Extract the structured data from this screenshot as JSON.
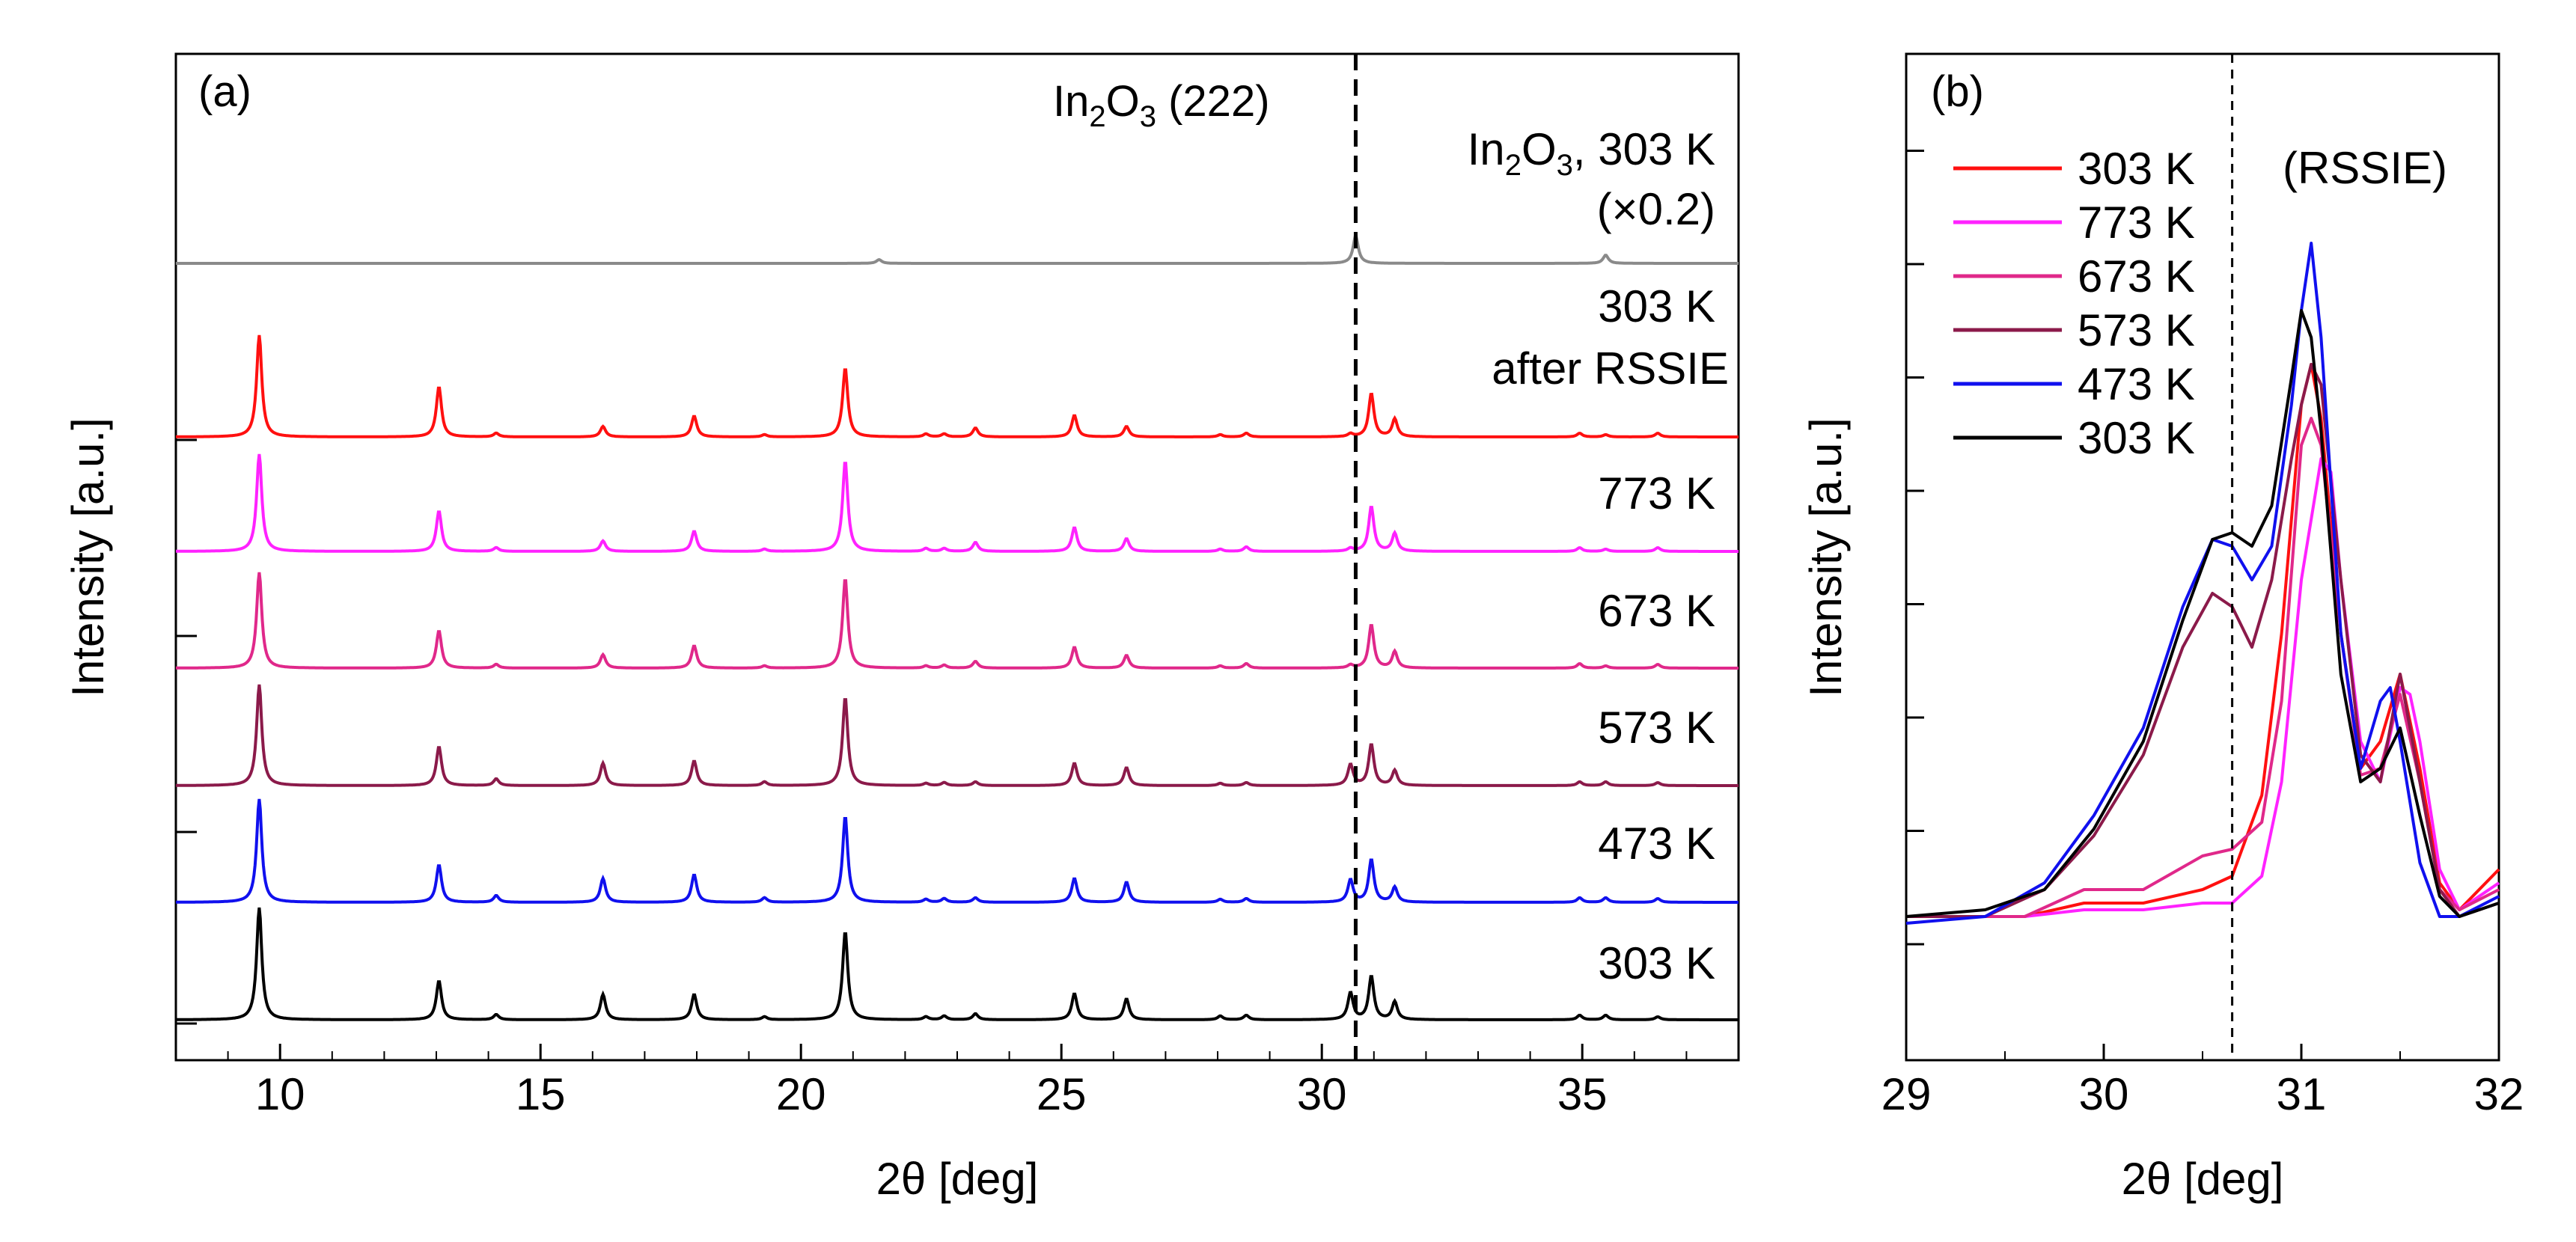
{
  "chart_data": [
    {
      "panel": "(a)",
      "type": "line",
      "panel_label": "(a)",
      "xlabel": "2θ [deg]",
      "ylabel": "Intensity [a.u.]",
      "xlim": [
        8,
        38
      ],
      "x_ticks": [
        10,
        15,
        20,
        25,
        30,
        35
      ],
      "x_tick_labels": [
        "10",
        "15",
        "20",
        "25",
        "30",
        "35"
      ],
      "reference_line": {
        "x": 30.65,
        "label_main": "In",
        "label_sub1": "2",
        "label_mid": "O",
        "label_sub2": "3",
        "label_tail": " (222)"
      },
      "peaks_2theta": [
        9.6,
        13.05,
        14.15,
        16.2,
        17.95,
        19.3,
        20.85,
        22.4,
        22.75,
        23.35,
        25.25,
        26.25,
        28.05,
        28.55,
        30.55,
        30.95,
        31.4,
        34.95,
        35.45,
        36.45
      ],
      "series": [
        {
          "name": "303 K",
          "label": "303 K",
          "label2": "",
          "color": "#000000",
          "offset": 1.0,
          "heights": [
            150,
            52,
            7,
            34,
            34,
            4,
            118,
            4,
            5,
            8,
            35,
            28,
            5,
            6,
            36,
            58,
            24,
            6,
            6,
            4
          ]
        },
        {
          "name": "473 K",
          "label": "473 K",
          "label2": "",
          "color": "#1010ee",
          "offset": 1.9,
          "heights": [
            138,
            50,
            9,
            32,
            37,
            6,
            115,
            4,
            5,
            6,
            32,
            27,
            4,
            5,
            30,
            57,
            20,
            6,
            6,
            5
          ]
        },
        {
          "name": "573 K",
          "label": "573 K",
          "label2": "",
          "color": "#8b1a4a",
          "offset": 2.8,
          "heights": [
            135,
            52,
            9,
            30,
            33,
            5,
            118,
            3,
            4,
            5,
            30,
            24,
            3,
            4,
            28,
            55,
            20,
            5,
            5,
            4
          ]
        },
        {
          "name": "673 K",
          "label": "673 K",
          "label2": "",
          "color": "#e0288a",
          "offset": 3.7,
          "heights": [
            128,
            50,
            5,
            18,
            30,
            3,
            120,
            3,
            4,
            9,
            28,
            17,
            3,
            6,
            4,
            58,
            22,
            6,
            3,
            5
          ]
        },
        {
          "name": "773 K",
          "label": "773 K",
          "label2": "",
          "color": "#ff22ff",
          "offset": 4.6,
          "heights": [
            130,
            54,
            5,
            14,
            27,
            3,
            121,
            4,
            4,
            12,
            32,
            17,
            3,
            6,
            4,
            60,
            24,
            5,
            3,
            5
          ]
        },
        {
          "name": "303 K after RSSIE",
          "label": "303 K",
          "label2": "after RSSIE",
          "color": "#ff1010",
          "offset": 5.5,
          "heights": [
            136,
            67,
            5,
            14,
            28,
            3,
            92,
            4,
            4,
            12,
            29,
            14,
            3,
            5,
            4,
            58,
            24,
            5,
            3,
            5
          ]
        },
        {
          "name": "In2O3, 303 K (×0.2)",
          "label": "In2O3, 303 K",
          "label2": "(×0.2)",
          "color": "#8a8a8a",
          "offset": 6.4,
          "peaks": [
            [
              21.5,
              5
            ],
            [
              30.65,
              37
            ],
            [
              35.45,
              11
            ]
          ]
        }
      ]
    },
    {
      "panel": "(b)",
      "type": "line",
      "panel_label": "(b)",
      "xlabel": "2θ [deg]",
      "ylabel": "Intensity [a.u.]",
      "xlim": [
        29,
        32
      ],
      "x_ticks": [
        29,
        30,
        31,
        32
      ],
      "x_tick_labels": [
        "29",
        "30",
        "31",
        "32"
      ],
      "reference_line": {
        "x": 30.65
      },
      "legend_note": "(RSSIE)",
      "series": [
        {
          "name": "303 K (RSSIE)",
          "label": "303 K",
          "color": "#ff1010",
          "x": [
            29.0,
            29.6,
            29.9,
            30.2,
            30.5,
            30.65,
            30.8,
            30.9,
            31.0,
            31.05,
            31.1,
            31.2,
            31.3,
            31.4,
            31.5,
            31.6,
            31.7,
            31.8,
            32.0
          ],
          "y": [
            0.0,
            0.0,
            0.02,
            0.02,
            0.04,
            0.06,
            0.18,
            0.42,
            0.76,
            0.82,
            0.74,
            0.42,
            0.22,
            0.26,
            0.36,
            0.22,
            0.05,
            0.01,
            0.07
          ]
        },
        {
          "name": "773 K",
          "label": "773 K",
          "color": "#ff22ff",
          "x": [
            29.0,
            29.6,
            29.9,
            30.2,
            30.5,
            30.65,
            30.8,
            30.9,
            31.0,
            31.1,
            31.15,
            31.2,
            31.3,
            31.4,
            31.5,
            31.55,
            31.6,
            31.7,
            31.8,
            32.0
          ],
          "y": [
            0.0,
            0.0,
            0.01,
            0.01,
            0.02,
            0.02,
            0.06,
            0.2,
            0.5,
            0.68,
            0.66,
            0.5,
            0.26,
            0.2,
            0.34,
            0.33,
            0.26,
            0.07,
            0.01,
            0.05
          ]
        },
        {
          "name": "673 K",
          "label": "673 K",
          "color": "#e0288a",
          "x": [
            29.0,
            29.6,
            29.9,
            30.2,
            30.5,
            30.65,
            30.8,
            30.9,
            31.0,
            31.05,
            31.1,
            31.2,
            31.3,
            31.4,
            31.5,
            31.6,
            31.7,
            31.8,
            32.0
          ],
          "y": [
            0.0,
            0.0,
            0.04,
            0.04,
            0.09,
            0.1,
            0.14,
            0.32,
            0.7,
            0.74,
            0.7,
            0.42,
            0.21,
            0.22,
            0.33,
            0.2,
            0.04,
            0.01,
            0.04
          ]
        },
        {
          "name": "573 K",
          "label": "573 K",
          "color": "#8b1a4a",
          "x": [
            29.0,
            29.4,
            29.7,
            29.95,
            30.2,
            30.4,
            30.55,
            30.65,
            30.75,
            30.85,
            30.95,
            31.0,
            31.05,
            31.1,
            31.2,
            31.3,
            31.4,
            31.5,
            31.6,
            31.7,
            31.8,
            32.0
          ],
          "y": [
            0.0,
            0.0,
            0.04,
            0.12,
            0.24,
            0.4,
            0.48,
            0.46,
            0.4,
            0.5,
            0.68,
            0.76,
            0.82,
            0.79,
            0.5,
            0.24,
            0.2,
            0.36,
            0.2,
            0.04,
            0.0,
            0.02
          ]
        },
        {
          "name": "473 K",
          "label": "473 K",
          "color": "#1010ee",
          "x": [
            29.0,
            29.4,
            29.7,
            29.95,
            30.2,
            30.4,
            30.55,
            30.65,
            30.75,
            30.85,
            30.95,
            31.0,
            31.05,
            31.1,
            31.2,
            31.3,
            31.4,
            31.45,
            31.5,
            31.6,
            31.7,
            31.8,
            32.0
          ],
          "y": [
            -0.01,
            0.0,
            0.05,
            0.15,
            0.28,
            0.46,
            0.56,
            0.55,
            0.5,
            0.55,
            0.76,
            0.9,
            1.0,
            0.86,
            0.42,
            0.22,
            0.32,
            0.34,
            0.26,
            0.08,
            0.0,
            0.0,
            0.03
          ]
        },
        {
          "name": "303 K",
          "label": "303 K",
          "color": "#000000",
          "x": [
            29.0,
            29.4,
            29.7,
            29.95,
            30.2,
            30.4,
            30.55,
            30.65,
            30.75,
            30.85,
            30.95,
            31.0,
            31.05,
            31.1,
            31.2,
            31.3,
            31.4,
            31.5,
            31.6,
            31.7,
            31.8,
            32.0
          ],
          "y": [
            0.0,
            0.01,
            0.04,
            0.13,
            0.26,
            0.44,
            0.56,
            0.57,
            0.55,
            0.61,
            0.8,
            0.9,
            0.86,
            0.72,
            0.36,
            0.2,
            0.22,
            0.28,
            0.15,
            0.03,
            0.0,
            0.02
          ]
        }
      ]
    }
  ]
}
